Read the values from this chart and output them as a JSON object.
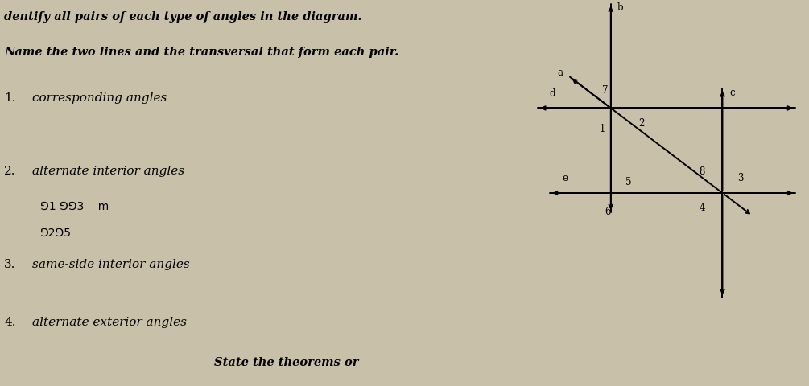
{
  "bg_color": "#c9c0aa",
  "title_line1": "dentify all pairs of each type of angles in the diagram.",
  "title_line2": "Name the two lines and the transversal that form each pair.",
  "item1_num": "1.",
  "item1_text": "corresponding angles",
  "item2_num": "2.",
  "item2_text": "alternate interior angles",
  "hw_line1": "⅁1 ⅁⅁3    m",
  "hw_line2": "⅁2⅁5",
  "item3_num": "3.",
  "item3_text": "same-side interior angles",
  "item4_num": "4.",
  "item4_text": "alternate exterior angles",
  "bottom_text": "State the theorems or",
  "ix1_fig": 0.755,
  "iy1_fig": 0.72,
  "ix2_fig": 0.893,
  "iy2_fig": 0.5,
  "lw": 1.4,
  "arrowscale": 8
}
